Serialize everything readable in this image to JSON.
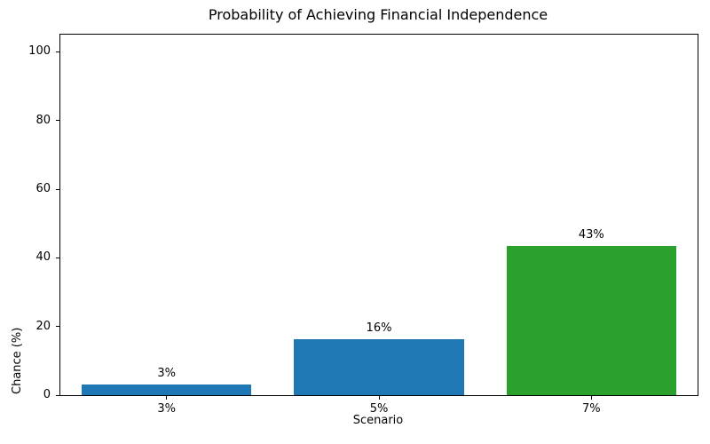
{
  "chart_data": {
    "type": "bar",
    "title": "Probability of Achieving Financial Independence",
    "xlabel": "Scenario",
    "ylabel": "Chance (%)",
    "categories": [
      "3%",
      "5%",
      "7%"
    ],
    "values": [
      3,
      16.4,
      43.4
    ],
    "bar_labels": [
      "3%",
      "16%",
      "43%"
    ],
    "bar_colors": [
      "#1f77b4",
      "#1f77b4",
      "#2ca02c"
    ],
    "ylim": [
      0,
      105
    ],
    "yticks": [
      0,
      20,
      40,
      60,
      80,
      100
    ],
    "grid": false,
    "legend": false,
    "axis_color": "#000000",
    "background_color": "#ffffff"
  }
}
